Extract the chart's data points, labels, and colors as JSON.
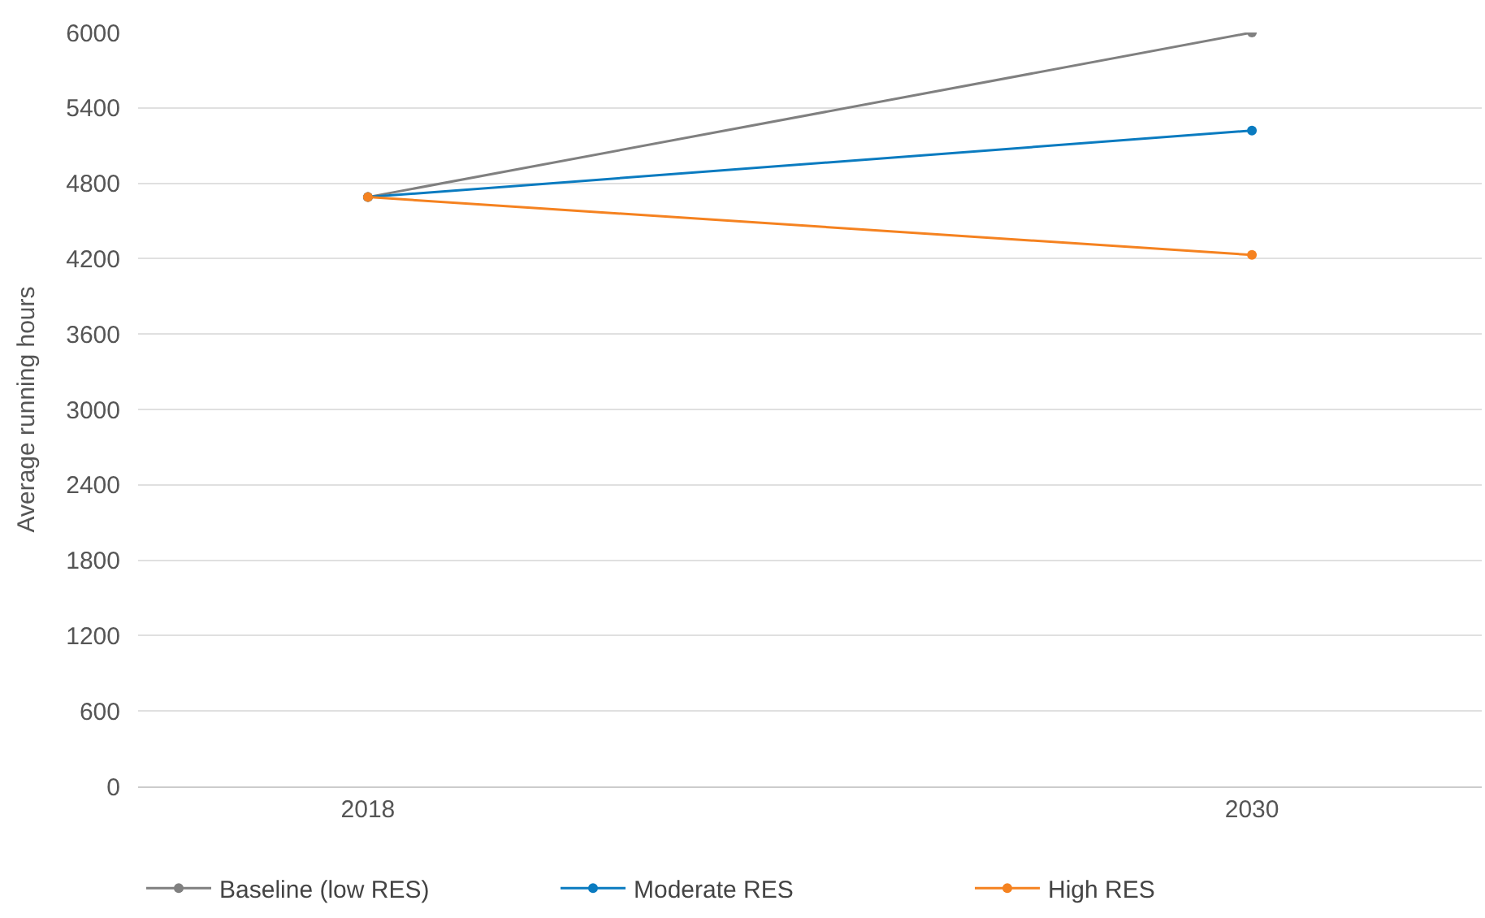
{
  "chart_data": {
    "type": "line",
    "ylabel": "Average running hours",
    "categories": [
      "2018",
      "2030"
    ],
    "series": [
      {
        "name": "Baseline (low RES)",
        "color": "#808080",
        "values": [
          4690,
          6000
        ]
      },
      {
        "name": "Moderate RES",
        "color": "#0a7bc0",
        "values": [
          4690,
          5220
        ]
      },
      {
        "name": "High RES",
        "color": "#f58220",
        "values": [
          4690,
          4230
        ]
      }
    ],
    "ylim": [
      0,
      6000
    ],
    "yticks": [
      0,
      600,
      1200,
      1800,
      2400,
      3000,
      3600,
      4200,
      4800,
      5400,
      6000
    ],
    "grid": "y",
    "legend": "bottom left",
    "marker": "circle",
    "line_style": "solid"
  }
}
